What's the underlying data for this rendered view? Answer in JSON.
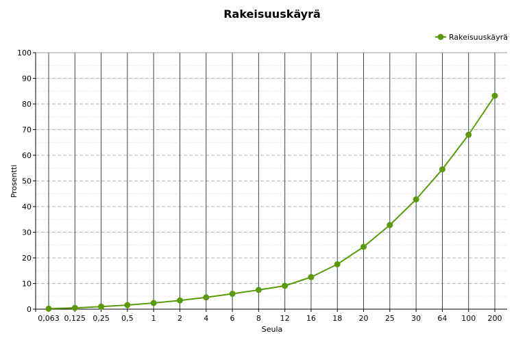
{
  "chart_data": {
    "type": "line",
    "title": "Rakeisuuskäyrä",
    "xlabel": "Seula",
    "ylabel": "Prosentti",
    "categories": [
      "0,063",
      "0,125",
      "0,25",
      "0,5",
      "1",
      "2",
      "4",
      "6",
      "8",
      "12",
      "16",
      "18",
      "20",
      "25",
      "30",
      "64",
      "100",
      "200"
    ],
    "series": [
      {
        "name": "Rakeisuuskäyrä",
        "values": [
          0.2,
          0.5,
          1.0,
          1.6,
          2.4,
          3.4,
          4.6,
          6.0,
          7.5,
          9.1,
          12.5,
          17.5,
          24.3,
          32.8,
          42.8,
          54.5,
          68.0,
          83.2
        ]
      }
    ],
    "ylim": [
      0,
      100
    ],
    "yticks": [
      0,
      10,
      20,
      30,
      40,
      50,
      60,
      70,
      80,
      90,
      100
    ],
    "grid": true,
    "legend_position": "top-right",
    "colors": {
      "series": "#5a9a0a",
      "vertical_grid": "#2e4a4a",
      "horizontal_grid": "#b4b4b4"
    }
  }
}
